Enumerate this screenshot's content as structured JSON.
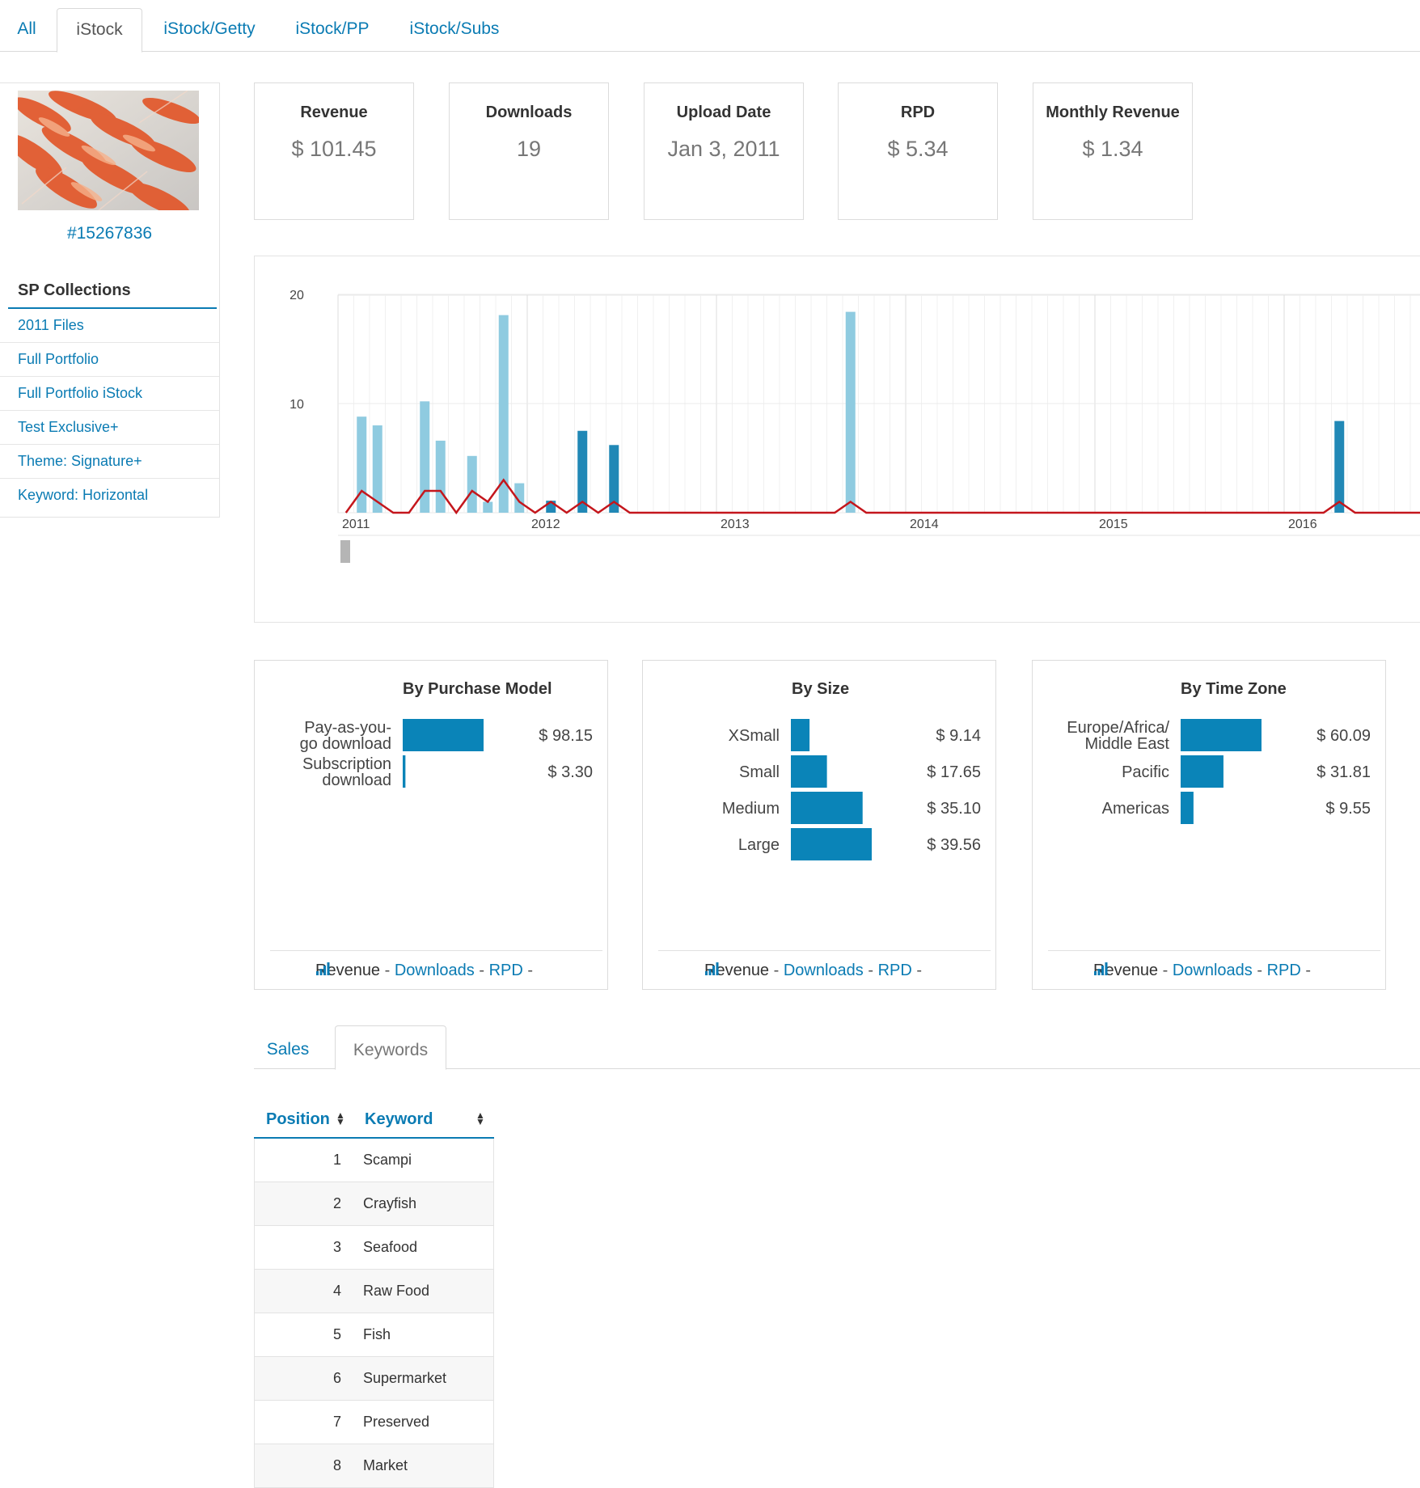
{
  "top_tabs": [
    {
      "label": "All",
      "active": false
    },
    {
      "label": "iStock",
      "active": true
    },
    {
      "label": "iStock/Getty",
      "active": false
    },
    {
      "label": "iStock/PP",
      "active": false
    },
    {
      "label": "iStock/Subs",
      "active": false
    }
  ],
  "sidebar": {
    "asset_id": "#15267836",
    "collections_title": "SP Collections",
    "collections": [
      "2011 Files",
      "Full Portfolio",
      "Full Portfolio iStock",
      "Test Exclusive+",
      "Theme: Signature+",
      "Keyword: Horizontal"
    ]
  },
  "stats": [
    {
      "label": "Revenue",
      "value": "$ 101.45"
    },
    {
      "label": "Downloads",
      "value": "19"
    },
    {
      "label": "Upload Date",
      "value": "Jan 3, 2011"
    },
    {
      "label": "RPD",
      "value": "$ 5.34"
    },
    {
      "label": "Monthly Revenue",
      "value": "$ 1.34"
    }
  ],
  "colors": {
    "accent": "#0a7bb3",
    "bar_light": "#8fcbe0",
    "bar_dark": "#2188b6",
    "line_red": "#c4161c",
    "panel_bar": "#0a84b8"
  },
  "chart_data": [
    {
      "type": "bar",
      "title": "",
      "y_ticks": [
        10,
        20
      ],
      "ylim": [
        0,
        20
      ],
      "x_ticks": [
        "2011",
        "2012",
        "2013",
        "2014",
        "2015",
        "2016"
      ],
      "series": [
        {
          "values": [
            {
              "month": "2011-02",
              "value": 8.8,
              "tone": "light"
            },
            {
              "month": "2011-03",
              "value": 8.0,
              "tone": "light"
            },
            {
              "month": "2011-06",
              "value": 10.2,
              "tone": "light"
            },
            {
              "month": "2011-07",
              "value": 6.6,
              "tone": "light"
            },
            {
              "month": "2011-09",
              "value": 5.2,
              "tone": "light"
            },
            {
              "month": "2011-10",
              "value": 1.0,
              "tone": "light"
            },
            {
              "month": "2011-11",
              "value": 18.1,
              "tone": "light"
            },
            {
              "month": "2011-12",
              "value": 2.7,
              "tone": "light"
            },
            {
              "month": "2012-02",
              "value": 1.1,
              "tone": "dark"
            },
            {
              "month": "2012-04",
              "value": 7.5,
              "tone": "dark"
            },
            {
              "month": "2012-06",
              "value": 6.2,
              "tone": "dark"
            },
            {
              "month": "2013-09",
              "value": 18.4,
              "tone": "light"
            },
            {
              "month": "2016-04",
              "value": 8.4,
              "tone": "dark"
            }
          ]
        },
        {
          "type": "line",
          "points": [
            [
              "2011-01",
              0
            ],
            [
              "2011-02",
              2
            ],
            [
              "2011-03",
              1
            ],
            [
              "2011-04",
              0
            ],
            [
              "2011-05",
              0
            ],
            [
              "2011-06",
              2
            ],
            [
              "2011-07",
              2
            ],
            [
              "2011-08",
              0
            ],
            [
              "2011-09",
              2
            ],
            [
              "2011-10",
              1
            ],
            [
              "2011-11",
              3
            ],
            [
              "2011-12",
              1
            ],
            [
              "2012-01",
              0
            ],
            [
              "2012-02",
              1
            ],
            [
              "2012-03",
              0
            ],
            [
              "2012-04",
              1
            ],
            [
              "2012-05",
              0
            ],
            [
              "2012-06",
              1
            ],
            [
              "2012-07",
              0
            ],
            [
              "2013-08",
              0
            ],
            [
              "2013-09",
              1
            ],
            [
              "2013-10",
              0
            ],
            [
              "2016-03",
              0
            ],
            [
              "2016-04",
              1
            ],
            [
              "2016-05",
              0
            ],
            [
              "2016-12",
              0
            ]
          ]
        }
      ]
    },
    {
      "type": "bar",
      "title": "By Purchase Model",
      "categories": [
        "Pay-as-you-go download",
        "Subscription download"
      ],
      "values": [
        98.15,
        3.3
      ],
      "value_labels": [
        "$ 98.15",
        "$ 3.30"
      ]
    },
    {
      "type": "bar",
      "title": "By Size",
      "categories": [
        "XSmall",
        "Small",
        "Medium",
        "Large"
      ],
      "values": [
        9.14,
        17.65,
        35.1,
        39.56
      ],
      "value_labels": [
        "$ 9.14",
        "$ 17.65",
        "$ 35.10",
        "$ 39.56"
      ]
    },
    {
      "type": "bar",
      "title": "By Time Zone",
      "categories": [
        "Europe/Africa/Middle East",
        "Pacific",
        "Americas"
      ],
      "values": [
        60.09,
        31.81,
        9.55
      ],
      "value_labels": [
        "$ 60.09",
        "$ 31.81",
        "$ 9.55"
      ]
    }
  ],
  "panels": [
    {
      "title": "By Purchase Model",
      "footer": {
        "revenue": "Revenue",
        "downloads": "Downloads",
        "rpd": "RPD",
        "sep": "-"
      }
    },
    {
      "title": "By Size",
      "footer": {
        "revenue": "Revenue",
        "downloads": "Downloads",
        "rpd": "RPD",
        "sep": "-"
      }
    },
    {
      "title": "By Time Zone",
      "footer": {
        "revenue": "Revenue",
        "downloads": "Downloads",
        "rpd": "RPD",
        "sep": "-"
      }
    }
  ],
  "lower_tabs": [
    {
      "label": "Sales",
      "active": false
    },
    {
      "label": "Keywords",
      "active": true
    }
  ],
  "keywords": {
    "headers": {
      "position": "Position",
      "keyword": "Keyword"
    },
    "rows": [
      {
        "position": "1",
        "keyword": "Scampi"
      },
      {
        "position": "2",
        "keyword": "Crayfish"
      },
      {
        "position": "3",
        "keyword": "Seafood"
      },
      {
        "position": "4",
        "keyword": "Raw Food"
      },
      {
        "position": "5",
        "keyword": "Fish"
      },
      {
        "position": "6",
        "keyword": "Supermarket"
      },
      {
        "position": "7",
        "keyword": "Preserved"
      },
      {
        "position": "8",
        "keyword": "Market"
      }
    ]
  }
}
